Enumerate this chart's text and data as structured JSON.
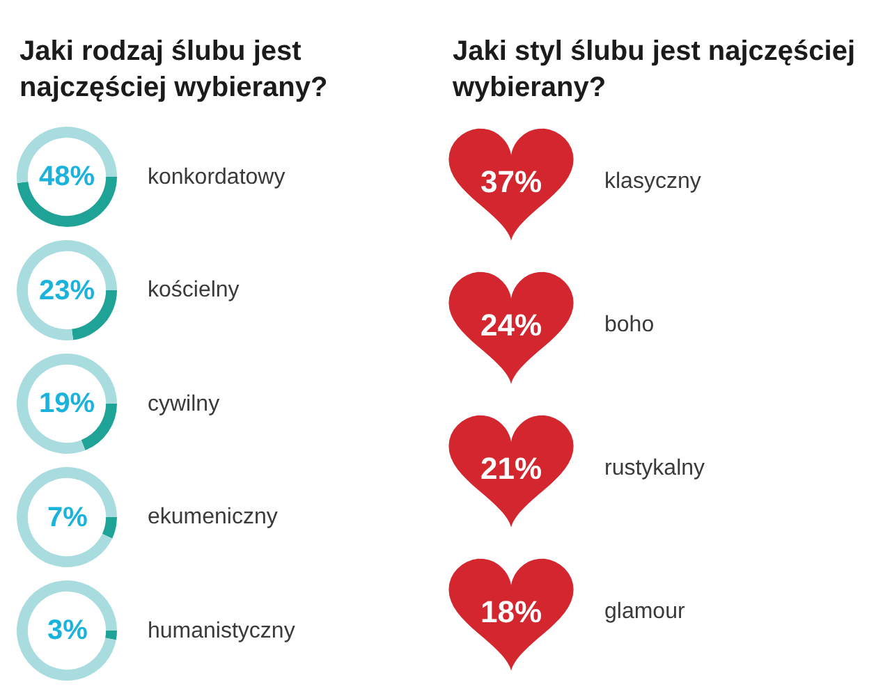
{
  "chart_data": [
    {
      "type": "donut",
      "title": "Jaki rodzaj ślubu jest najczęściej wybierany?",
      "categories": [
        "konkordatowy",
        null
      ],
      "values": [
        48,
        52
      ],
      "colors": [
        "#1fa396",
        "#a9dcdf"
      ],
      "annotations": [
        "48%"
      ]
    },
    {
      "type": "donut",
      "categories": [
        "kościelny",
        null
      ],
      "values": [
        23,
        77
      ],
      "colors": [
        "#1fa396",
        "#a9dcdf"
      ],
      "annotations": [
        "23%"
      ]
    },
    {
      "type": "donut",
      "categories": [
        "cywilny",
        null
      ],
      "values": [
        19,
        81
      ],
      "colors": [
        "#1fa396",
        "#a9dcdf"
      ],
      "annotations": [
        "19%"
      ]
    },
    {
      "type": "donut",
      "categories": [
        "ekumeniczny",
        null
      ],
      "values": [
        7,
        93
      ],
      "colors": [
        "#1fa396",
        "#a9dcdf"
      ],
      "annotations": [
        "7%"
      ]
    },
    {
      "type": "donut",
      "categories": [
        "humanistyczny",
        null
      ],
      "values": [
        3,
        97
      ],
      "colors": [
        "#1fa396",
        "#a9dcdf"
      ],
      "annotations": [
        "3%"
      ]
    },
    {
      "type": "other",
      "title": "Jaki styl ślubu jest najczęściej wybierany?",
      "categories": [
        "klasyczny",
        "boho",
        "rustykalny",
        "glamour"
      ],
      "values": [
        37,
        24,
        21,
        18
      ],
      "color": "#d3262e",
      "value_labels": [
        "37%",
        "24%",
        "21%",
        "18%"
      ]
    }
  ]
}
